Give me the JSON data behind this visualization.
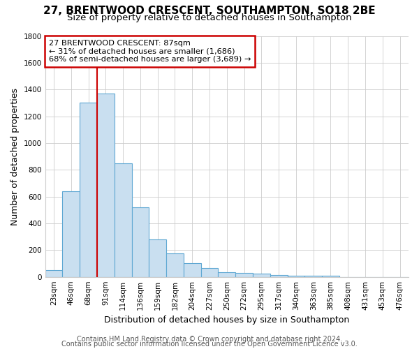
{
  "title": "27, BRENTWOOD CRESCENT, SOUTHAMPTON, SO18 2BE",
  "subtitle": "Size of property relative to detached houses in Southampton",
  "xlabel": "Distribution of detached houses by size in Southampton",
  "ylabel": "Number of detached properties",
  "bin_labels": [
    "23sqm",
    "46sqm",
    "68sqm",
    "91sqm",
    "114sqm",
    "136sqm",
    "159sqm",
    "182sqm",
    "204sqm",
    "227sqm",
    "250sqm",
    "272sqm",
    "295sqm",
    "317sqm",
    "340sqm",
    "363sqm",
    "385sqm",
    "408sqm",
    "431sqm",
    "453sqm",
    "476sqm"
  ],
  "bar_values": [
    50,
    640,
    1300,
    1370,
    850,
    520,
    280,
    175,
    105,
    65,
    35,
    30,
    22,
    15,
    10,
    8,
    10,
    0,
    0,
    0,
    0
  ],
  "bar_color": "#c9dff0",
  "bar_edge_color": "#5fa8d3",
  "vline_color": "#cc0000",
  "annotation_line1": "27 BRENTWOOD CRESCENT: 87sqm",
  "annotation_line2": "← 31% of detached houses are smaller (1,686)",
  "annotation_line3": "68% of semi-detached houses are larger (3,689) →",
  "annotation_box_color": "#ffffff",
  "annotation_box_edge": "#cc0000",
  "ylim": [
    0,
    1800
  ],
  "yticks": [
    0,
    200,
    400,
    600,
    800,
    1000,
    1200,
    1400,
    1600,
    1800
  ],
  "footer_line1": "Contains HM Land Registry data © Crown copyright and database right 2024.",
  "footer_line2": "Contains public sector information licensed under the Open Government Licence v3.0.",
  "background_color": "#ffffff",
  "plot_bg_color": "#ffffff",
  "grid_color": "#cccccc",
  "title_fontsize": 11,
  "subtitle_fontsize": 9.5,
  "axis_label_fontsize": 9,
  "tick_fontsize": 7.5,
  "footer_fontsize": 7
}
